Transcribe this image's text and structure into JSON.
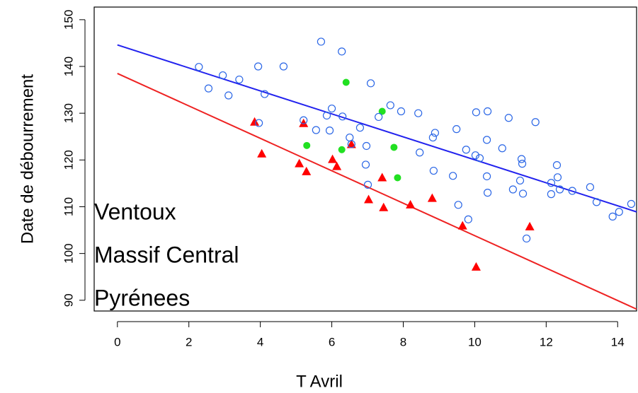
{
  "chart_data": {
    "type": "scatter",
    "xlabel": "T Avril",
    "ylabel": "Date de débourrement",
    "xlim": [
      -0.65,
      14.53
    ],
    "ylim": [
      87.7,
      152.7
    ],
    "xticks": [
      0,
      2,
      4,
      6,
      8,
      10,
      12,
      14
    ],
    "yticks": [
      90,
      100,
      110,
      120,
      130,
      140,
      150
    ],
    "series": [
      {
        "name": "Ventoux",
        "color": "#ff0000",
        "marker": "triangle",
        "x": [
          3.84,
          4.04,
          5.09,
          5.21,
          5.29,
          6.02,
          6.14,
          6.55,
          7.03,
          7.41,
          7.45,
          8.2,
          8.81,
          9.66,
          10.04,
          11.54
        ],
        "values": [
          128.1,
          121.3,
          119.2,
          127.8,
          117.5,
          120.1,
          118.6,
          123.3,
          111.5,
          116.2,
          109.8,
          110.4,
          111.8,
          105.9,
          97.1,
          105.7
        ],
        "fit": {
          "color": "#ee2222",
          "x": [
            0,
            14.53
          ],
          "values": [
            138.5,
            88.1
          ]
        }
      },
      {
        "name": "Massif Central",
        "color": "#22e022",
        "marker": "dot",
        "x": [
          5.3,
          6.4,
          6.28,
          7.41,
          7.74,
          7.84
        ],
        "values": [
          123.1,
          136.6,
          122.2,
          130.4,
          122.7,
          116.2
        ]
      },
      {
        "name": "Pyrénees",
        "color": "#2a66e6",
        "marker": "circle",
        "x": [
          2.28,
          2.55,
          2.95,
          3.11,
          3.41,
          3.94,
          4.12,
          4.65,
          5.21,
          3.96,
          5.56,
          5.7,
          5.86,
          6.0,
          5.94,
          6.28,
          6.3,
          6.5,
          6.55,
          6.79,
          7.09,
          6.97,
          6.95,
          7.01,
          7.31,
          7.64,
          7.94,
          8.42,
          8.46,
          8.85,
          8.89,
          8.83,
          9.49,
          9.39,
          9.54,
          9.76,
          9.82,
          10.04,
          10.02,
          10.14,
          10.34,
          10.34,
          10.36,
          10.36,
          10.77,
          10.95,
          11.07,
          11.27,
          11.31,
          11.33,
          11.35,
          11.45,
          11.7,
          12.14,
          12.14,
          12.3,
          12.32,
          12.38,
          12.73,
          13.23,
          13.41,
          13.86,
          14.04,
          14.38
        ],
        "values": [
          139.9,
          135.3,
          138.1,
          133.8,
          137.2,
          140.0,
          134.1,
          140.0,
          128.5,
          127.9,
          126.4,
          145.3,
          129.5,
          131.0,
          126.3,
          143.2,
          129.3,
          124.8,
          123.4,
          126.9,
          136.4,
          123.0,
          119.0,
          114.7,
          129.2,
          131.7,
          130.4,
          130.0,
          121.6,
          117.7,
          125.8,
          124.8,
          126.6,
          116.6,
          110.4,
          122.2,
          107.3,
          130.2,
          121.0,
          120.4,
          124.3,
          116.5,
          113.0,
          130.4,
          122.5,
          129.0,
          113.7,
          115.6,
          120.2,
          119.2,
          112.8,
          103.2,
          128.1,
          115.1,
          112.7,
          118.9,
          116.3,
          113.7,
          113.4,
          114.2,
          111.0,
          107.9,
          108.9,
          110.6
        ],
        "fit": {
          "color": "#2222ee",
          "x": [
            0,
            14.53
          ],
          "values": [
            144.6,
            108.9
          ]
        }
      }
    ]
  }
}
